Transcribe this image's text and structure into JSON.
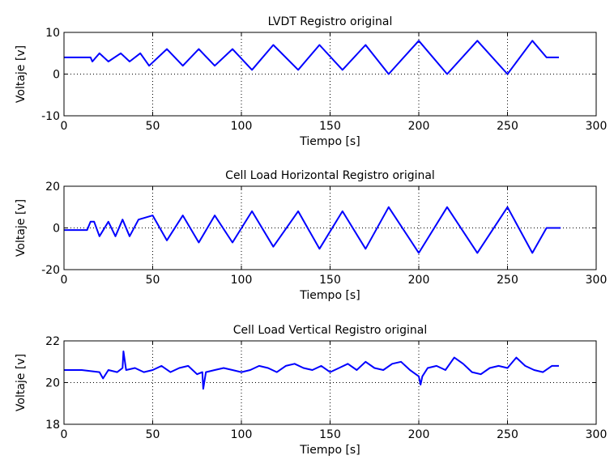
{
  "figure": {
    "background": "#ffffff",
    "line_color": "#0000ff",
    "grid_style": "dotted"
  },
  "chart_data": [
    {
      "type": "line",
      "title": "LVDT Registro original",
      "xlabel": "Tiempo [s]",
      "ylabel": "Voltaje [v]",
      "xlim": [
        0,
        300
      ],
      "ylim": [
        -10,
        10
      ],
      "xticks": [
        "0",
        "50",
        "100",
        "150",
        "200",
        "250",
        "300"
      ],
      "yticks": [
        "10",
        "0",
        "-10"
      ],
      "grid": true,
      "series": [
        {
          "x": [
            0,
            15,
            16,
            20,
            25,
            32,
            37,
            43,
            48,
            58,
            67,
            76,
            85,
            95,
            106,
            118,
            132,
            144,
            157,
            170,
            183,
            200,
            216,
            233,
            250,
            264,
            272,
            279
          ],
          "y": [
            4,
            4,
            3,
            5,
            3,
            5,
            3,
            5,
            2,
            6,
            2,
            6,
            2,
            6,
            1,
            7,
            1,
            7,
            1,
            7,
            0,
            8,
            0,
            8,
            0,
            8,
            4,
            4
          ]
        }
      ]
    },
    {
      "type": "line",
      "title": "Cell Load Horizontal Registro original",
      "xlabel": "Tiempo [s]",
      "ylabel": "Voltaje [v]",
      "xlim": [
        0,
        300
      ],
      "ylim": [
        -20,
        20
      ],
      "xticks": [
        "0",
        "50",
        "100",
        "150",
        "200",
        "250",
        "300"
      ],
      "yticks": [
        "20",
        "0",
        "-20"
      ],
      "grid": true,
      "series": [
        {
          "x": [
            0,
            13,
            15,
            17,
            20,
            25,
            29,
            33,
            37,
            42,
            50,
            58,
            67,
            76,
            85,
            95,
            106,
            118,
            132,
            144,
            157,
            170,
            183,
            200,
            216,
            233,
            250,
            264,
            272,
            280
          ],
          "y": [
            -1,
            -1,
            3,
            3,
            -4,
            3,
            -4,
            4,
            -4,
            4,
            6,
            -6,
            6,
            -7,
            6,
            -7,
            8,
            -9,
            8,
            -10,
            8,
            -10,
            10,
            -12,
            10,
            -12,
            10,
            -12,
            0,
            0
          ]
        }
      ]
    },
    {
      "type": "line",
      "title": "Cell Load Vertical Registro original",
      "xlabel": "Tiempo [s]",
      "ylabel": "Voltaje [v]",
      "xlim": [
        0,
        300
      ],
      "ylim": [
        18,
        22
      ],
      "xticks": [
        "0",
        "50",
        "100",
        "150",
        "200",
        "250",
        "300"
      ],
      "yticks": [
        "22",
        "20",
        "18"
      ],
      "grid": true,
      "series": [
        {
          "x": [
            0,
            10,
            20,
            22,
            25,
            30,
            33,
            33.5,
            35,
            40,
            45,
            50,
            55,
            60,
            65,
            70,
            75,
            78,
            78.5,
            80,
            85,
            90,
            95,
            100,
            105,
            110,
            115,
            120,
            125,
            130,
            135,
            140,
            145,
            150,
            155,
            160,
            165,
            170,
            175,
            180,
            185,
            190,
            195,
            200,
            201,
            202,
            205,
            210,
            215,
            220,
            225,
            230,
            235,
            240,
            245,
            250,
            255,
            260,
            265,
            270,
            275,
            279
          ],
          "y": [
            20.6,
            20.6,
            20.5,
            20.2,
            20.6,
            20.5,
            20.7,
            21.5,
            20.6,
            20.7,
            20.5,
            20.6,
            20.8,
            20.5,
            20.7,
            20.8,
            20.4,
            20.5,
            19.7,
            20.5,
            20.6,
            20.7,
            20.6,
            20.5,
            20.6,
            20.8,
            20.7,
            20.5,
            20.8,
            20.9,
            20.7,
            20.6,
            20.8,
            20.5,
            20.7,
            20.9,
            20.6,
            21.0,
            20.7,
            20.6,
            20.9,
            21.0,
            20.6,
            20.3,
            19.9,
            20.3,
            20.7,
            20.8,
            20.6,
            21.2,
            20.9,
            20.5,
            20.4,
            20.7,
            20.8,
            20.7,
            21.2,
            20.8,
            20.6,
            20.5,
            20.8,
            20.8
          ]
        }
      ]
    }
  ]
}
